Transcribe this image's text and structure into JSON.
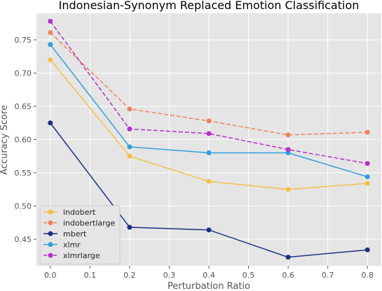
{
  "chart_data": {
    "type": "line",
    "title": "Indonesian-Synonym Replaced Emotion Classification",
    "xlabel": "Perturbation Ratio",
    "ylabel": "Accuracy Score",
    "x": [
      0.0,
      0.2,
      0.4,
      0.6,
      0.8
    ],
    "x_ticks": [
      "0.0",
      "0.1",
      "0.2",
      "0.3",
      "0.4",
      "0.5",
      "0.6",
      "0.7",
      "0.8"
    ],
    "y_ticks": [
      "0.45",
      "0.50",
      "0.55",
      "0.60",
      "0.65",
      "0.70",
      "0.75"
    ],
    "xlim": [
      -0.035,
      0.835
    ],
    "ylim": [
      0.41,
      0.79
    ],
    "grid": true,
    "legend_position": "lower-left",
    "background": "#e5e5e5",
    "series": [
      {
        "name": "indobert",
        "color": "#f5c04a",
        "dashed": false,
        "values": [
          0.72,
          0.575,
          0.537,
          0.525,
          0.534
        ]
      },
      {
        "name": "indobertlarge",
        "color": "#f08262",
        "dashed": true,
        "values": [
          0.761,
          0.646,
          0.628,
          0.607,
          0.611
        ]
      },
      {
        "name": "mbert",
        "color": "#1c2f86",
        "dashed": false,
        "values": [
          0.625,
          0.468,
          0.464,
          0.423,
          0.434
        ]
      },
      {
        "name": "xlmr",
        "color": "#2e9fdf",
        "dashed": false,
        "values": [
          0.743,
          0.589,
          0.58,
          0.58,
          0.544
        ]
      },
      {
        "name": "xlmrlarge",
        "color": "#b52fcc",
        "dashed": true,
        "values": [
          0.778,
          0.616,
          0.609,
          0.585,
          0.564
        ]
      }
    ]
  }
}
